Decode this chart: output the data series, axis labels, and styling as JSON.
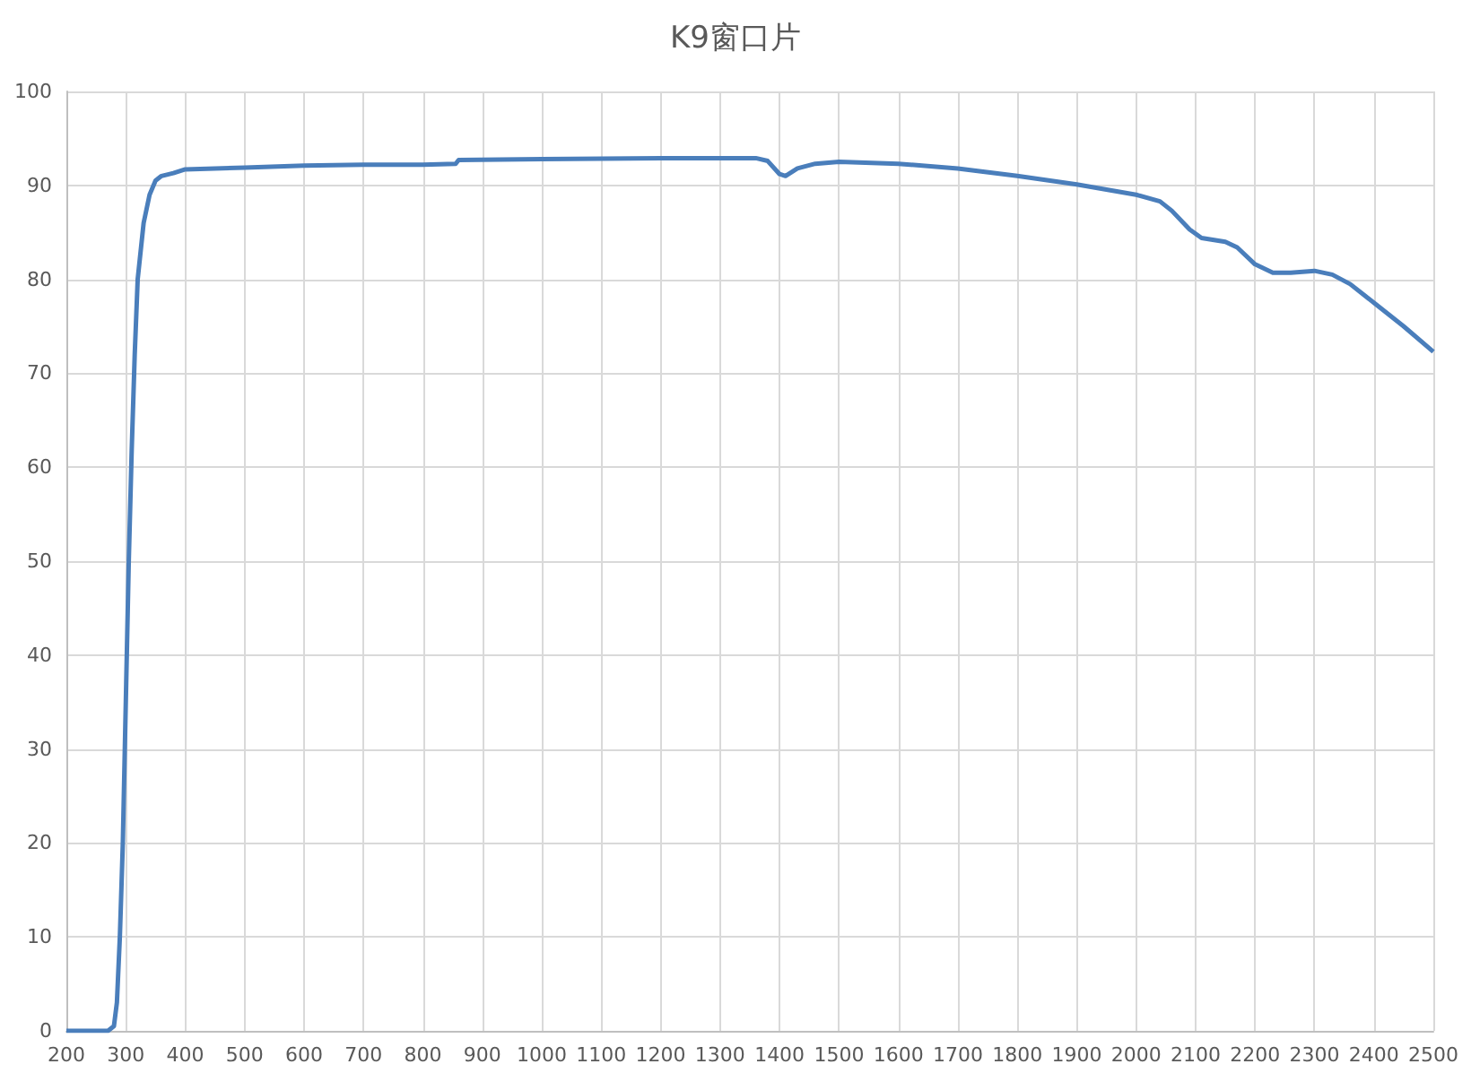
{
  "chart_data": {
    "type": "line",
    "title": "K9窗口片",
    "x": [
      200,
      270,
      280,
      285,
      290,
      295,
      300,
      305,
      310,
      315,
      320,
      330,
      340,
      350,
      360,
      380,
      400,
      500,
      600,
      700,
      800,
      855,
      860,
      1000,
      1200,
      1360,
      1380,
      1400,
      1410,
      1430,
      1460,
      1500,
      1600,
      1700,
      1800,
      1900,
      2000,
      2040,
      2060,
      2090,
      2110,
      2150,
      2170,
      2200,
      2230,
      2260,
      2300,
      2330,
      2360,
      2400,
      2450,
      2500
    ],
    "series": [
      {
        "color": "#4a7ebb",
        "values": [
          0,
          0,
          0.5,
          3,
          10,
          20,
          35,
          50,
          62,
          72,
          80,
          86,
          89,
          90.5,
          91,
          91.3,
          91.7,
          91.9,
          92.1,
          92.2,
          92.2,
          92.3,
          92.7,
          92.8,
          92.9,
          92.9,
          92.6,
          91.2,
          91.0,
          91.8,
          92.3,
          92.5,
          92.3,
          91.8,
          91.0,
          90.1,
          89.0,
          88.3,
          87.3,
          85.3,
          84.4,
          84.0,
          83.4,
          81.6,
          80.7,
          80.7,
          80.9,
          80.5,
          79.5,
          77.5,
          75.0,
          72.3
        ]
      }
    ],
    "xlim": [
      200,
      2500
    ],
    "xticks": [
      200,
      300,
      400,
      500,
      600,
      700,
      800,
      900,
      1000,
      1100,
      1200,
      1300,
      1400,
      1500,
      1600,
      1700,
      1800,
      1900,
      2000,
      2100,
      2200,
      2300,
      2400,
      2500
    ],
    "ylim": [
      0,
      100
    ],
    "yticks": [
      0,
      10,
      20,
      30,
      40,
      50,
      60,
      70,
      80,
      90,
      100
    ],
    "grid": true,
    "marker": "none",
    "line_style": "solid"
  }
}
